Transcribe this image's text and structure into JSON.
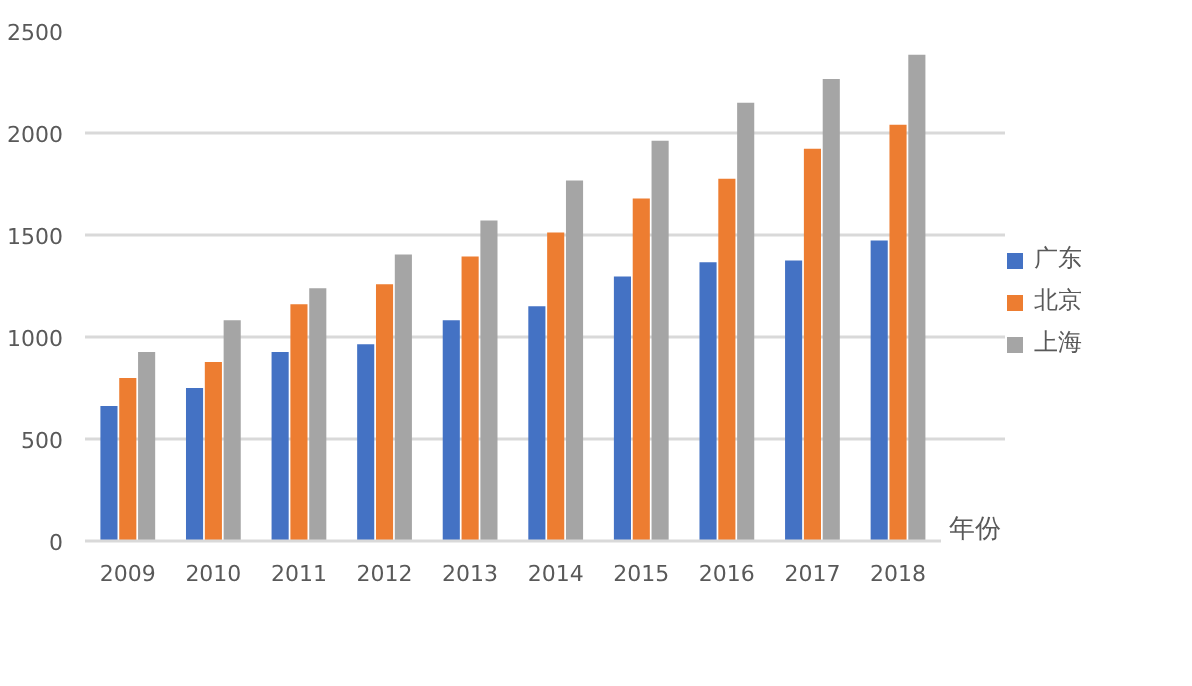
{
  "chart_data": {
    "type": "bar",
    "xlabel": "年份",
    "categories": [
      "2009",
      "2010",
      "2011",
      "2012",
      "2013",
      "2014",
      "2015",
      "2016",
      "2017",
      "2018"
    ],
    "series": [
      {
        "name": "广东",
        "color": "#4472c4",
        "values": [
          662,
          750,
          926,
          965,
          1082,
          1151,
          1297,
          1366,
          1375,
          1473
        ]
      },
      {
        "name": "北京",
        "color": "#ed7d31",
        "values": [
          799,
          877,
          1160,
          1258,
          1395,
          1512,
          1679,
          1776,
          1923,
          2040
        ]
      },
      {
        "name": "上海",
        "color": "#a5a5a5",
        "values": [
          926,
          1082,
          1239,
          1405,
          1571,
          1767,
          1962,
          2148,
          2265,
          2383
        ]
      }
    ],
    "ylim": [
      0,
      2500
    ],
    "yticks": [
      0,
      500,
      1000,
      1500,
      2000,
      2500
    ],
    "grid": "y",
    "legend": "right"
  }
}
